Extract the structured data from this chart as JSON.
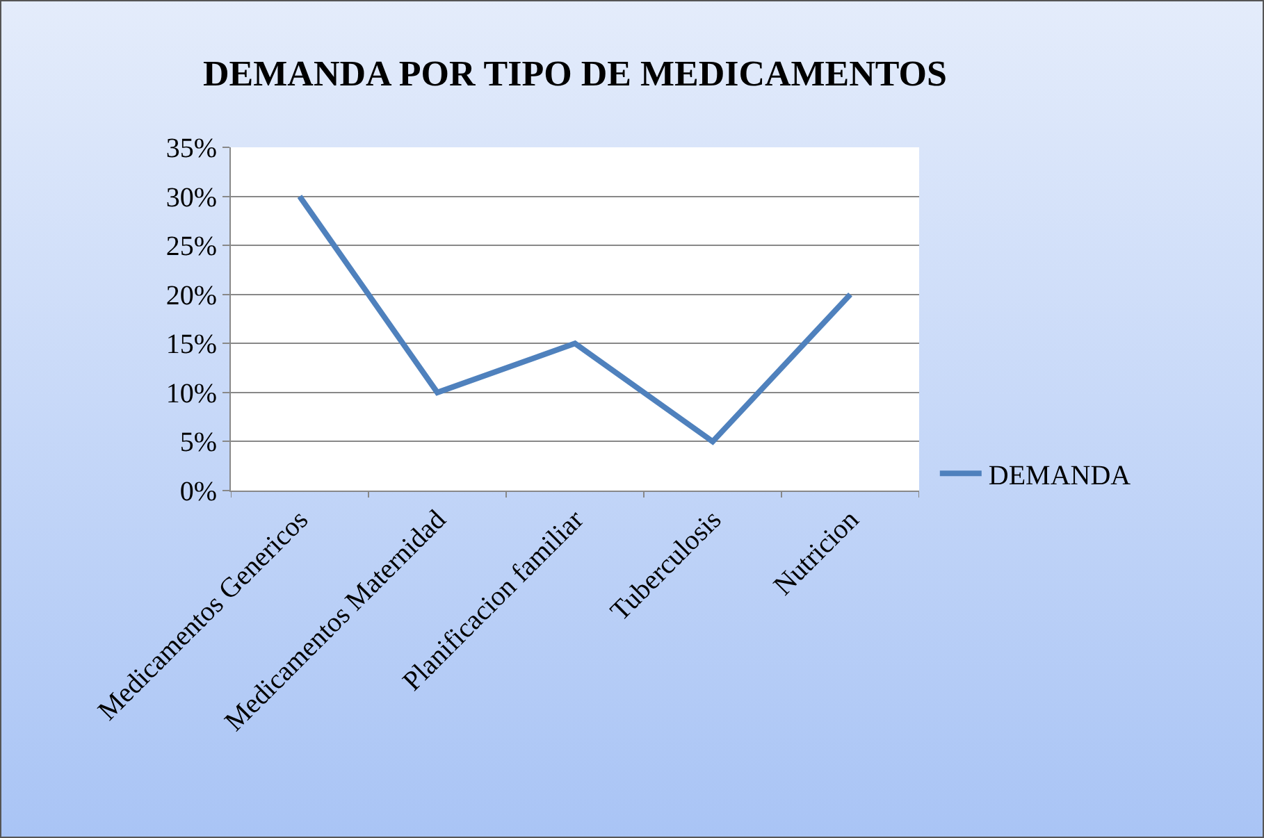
{
  "chart_data": {
    "type": "line",
    "title": "DEMANDA POR TIPO DE MEDICAMENTOS",
    "categories": [
      "Medicamentos Genericos",
      "Medicamentos Maternidad",
      "Planificacion familiar",
      "Tuberculosis",
      "Nutricion"
    ],
    "series": [
      {
        "name": "DEMANDA",
        "color": "#4f81bd",
        "values": [
          30,
          10,
          15,
          5,
          20
        ]
      }
    ],
    "ylim": [
      0,
      35
    ],
    "yticks": [
      {
        "value": 0,
        "label": "0%"
      },
      {
        "value": 5,
        "label": "5%"
      },
      {
        "value": 10,
        "label": "10%"
      },
      {
        "value": 15,
        "label": "15%"
      },
      {
        "value": 20,
        "label": "20%"
      },
      {
        "value": 25,
        "label": "25%"
      },
      {
        "value": 30,
        "label": "30%"
      },
      {
        "value": 35,
        "label": "35%"
      }
    ],
    "grid": "y",
    "legend": "right",
    "marker": "none",
    "line_style": "solid"
  }
}
